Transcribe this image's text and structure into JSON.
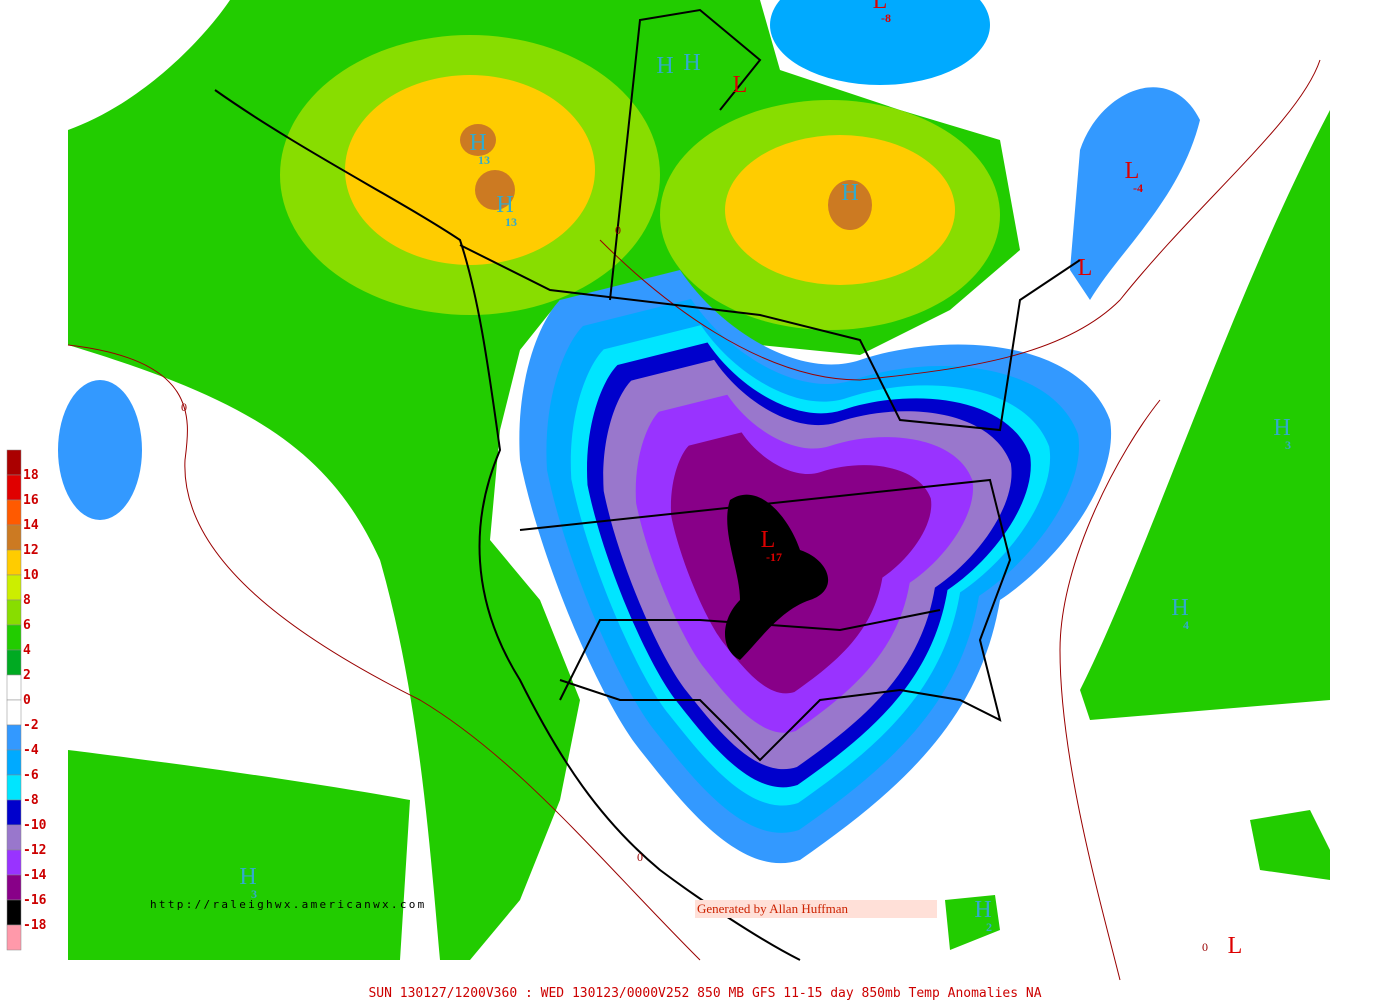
{
  "legend": {
    "labels": [
      "18",
      "16",
      "14",
      "12",
      "10",
      "8",
      "6",
      "4",
      "2",
      "0",
      "-2",
      "-4",
      "-6",
      "-8",
      "-10",
      "-12",
      "-14",
      "-16",
      "-18"
    ],
    "colors": [
      "#aa0000",
      "#e00000",
      "#ff5a00",
      "#cc7a22",
      "#ffcc00",
      "#ccee00",
      "#88dd00",
      "#22cc00",
      "#00aa22",
      "#ffffff",
      "#ffffff",
      "#3399ff",
      "#00aaff",
      "#00e5ff",
      "#0000cc",
      "#9977cc",
      "#9933ff",
      "#880088",
      "#000000",
      "#ff99aa"
    ]
  },
  "markers": [
    {
      "letter": "H",
      "value": "13"
    },
    {
      "letter": "H",
      "value": "13"
    },
    {
      "letter": "H"
    },
    {
      "letter": "H"
    },
    {
      "letter": "H"
    },
    {
      "letter": "L"
    },
    {
      "letter": "L",
      "value": "-8"
    },
    {
      "letter": "L",
      "value": "-4"
    },
    {
      "letter": "L"
    },
    {
      "letter": "H",
      "value": "3"
    },
    {
      "letter": "H",
      "value": "4"
    },
    {
      "letter": "H",
      "value": "3"
    },
    {
      "letter": "H",
      "value": "2"
    },
    {
      "letter": "L",
      "value": "-17"
    },
    {
      "letter": "L"
    }
  ],
  "contour_labels": [
    "0",
    "0",
    "0",
    "0"
  ],
  "url": "http://raleighwx.americanwx.com",
  "credit": "Generated by Allan Huffman",
  "footer": "SUN 130127/1200V360 : WED 130123/0000V252  850 MB GFS 11-15 day 850mb Temp Anomalies NA"
}
